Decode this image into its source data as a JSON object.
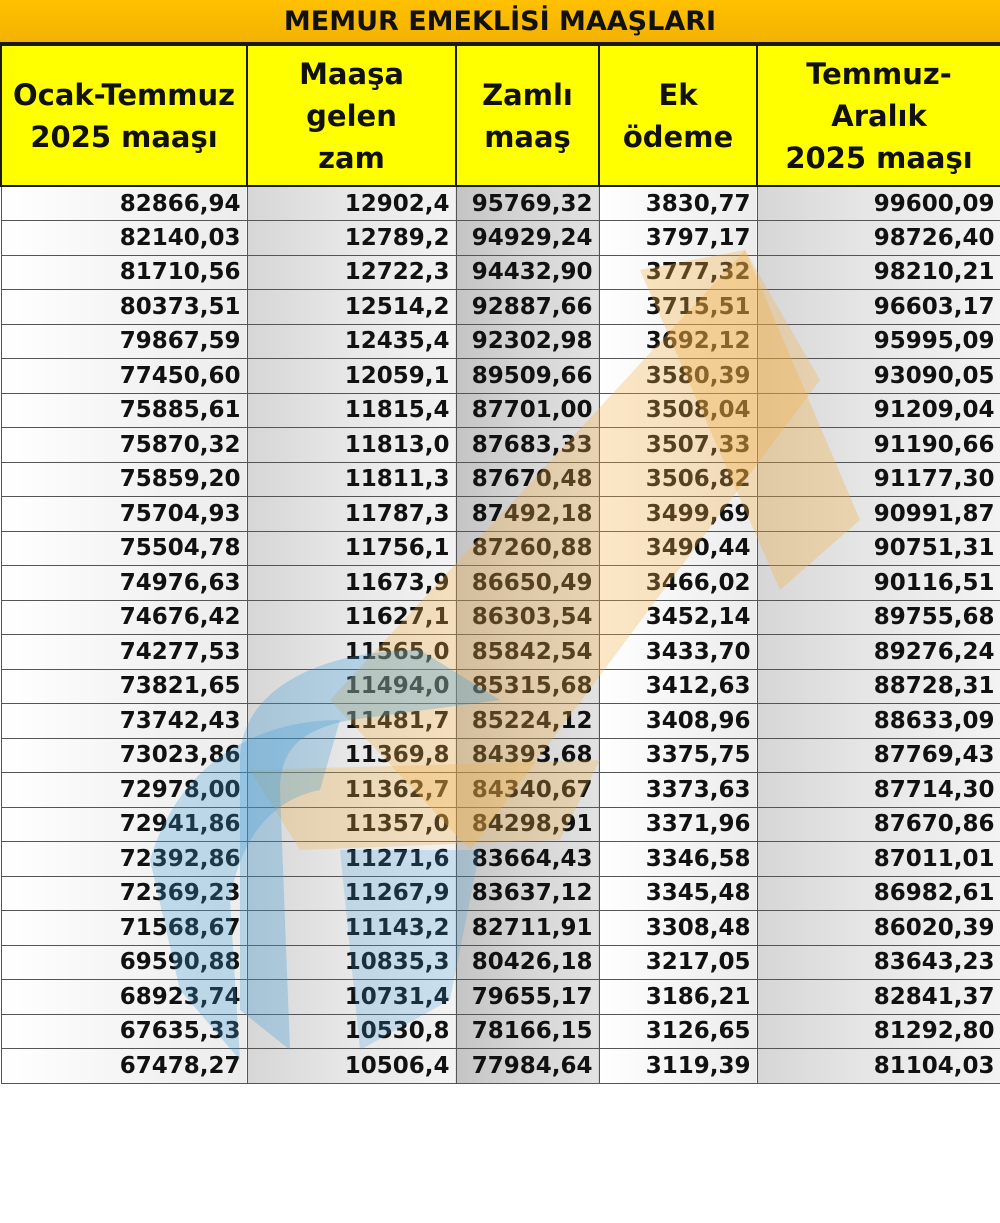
{
  "title": "MEMUR EMEKLİSİ MAAŞLARI",
  "columns": [
    "Ocak-Temmuz\n2025 maaşı",
    "Maaşa gelen\nzam",
    "Zamlı\nmaaş",
    "Ek ödeme",
    "Temmuz-Aralık\n2025 maaşı"
  ],
  "rows": [
    [
      "82866,94",
      "12902,4",
      "95769,32",
      "3830,77",
      "99600,09"
    ],
    [
      "82140,03",
      "12789,2",
      "94929,24",
      "3797,17",
      "98726,40"
    ],
    [
      "81710,56",
      "12722,3",
      "94432,90",
      "3777,32",
      "98210,21"
    ],
    [
      "80373,51",
      "12514,2",
      "92887,66",
      "3715,51",
      "96603,17"
    ],
    [
      "79867,59",
      "12435,4",
      "92302,98",
      "3692,12",
      "95995,09"
    ],
    [
      "77450,60",
      "12059,1",
      "89509,66",
      "3580,39",
      "93090,05"
    ],
    [
      "75885,61",
      "11815,4",
      "87701,00",
      "3508,04",
      "91209,04"
    ],
    [
      "75870,32",
      "11813,0",
      "87683,33",
      "3507,33",
      "91190,66"
    ],
    [
      "75859,20",
      "11811,3",
      "87670,48",
      "3506,82",
      "91177,30"
    ],
    [
      "75704,93",
      "11787,3",
      "87492,18",
      "3499,69",
      "90991,87"
    ],
    [
      "75504,78",
      "11756,1",
      "87260,88",
      "3490,44",
      "90751,31"
    ],
    [
      "74976,63",
      "11673,9",
      "86650,49",
      "3466,02",
      "90116,51"
    ],
    [
      "74676,42",
      "11627,1",
      "86303,54",
      "3452,14",
      "89755,68"
    ],
    [
      "74277,53",
      "11565,0",
      "85842,54",
      "3433,70",
      "89276,24"
    ],
    [
      "73821,65",
      "11494,0",
      "85315,68",
      "3412,63",
      "88728,31"
    ],
    [
      "73742,43",
      "11481,7",
      "85224,12",
      "3408,96",
      "88633,09"
    ],
    [
      "73023,86",
      "11369,8",
      "84393,68",
      "3375,75",
      "87769,43"
    ],
    [
      "72978,00",
      "11362,7",
      "84340,67",
      "3373,63",
      "87714,30"
    ],
    [
      "72941,86",
      "11357,0",
      "84298,91",
      "3371,96",
      "87670,86"
    ],
    [
      "72392,86",
      "11271,6",
      "83664,43",
      "3346,58",
      "87011,01"
    ],
    [
      "72369,23",
      "11267,9",
      "83637,12",
      "3345,48",
      "86982,61"
    ],
    [
      "71568,67",
      "11143,2",
      "82711,91",
      "3308,48",
      "86020,39"
    ],
    [
      "69590,88",
      "10835,3",
      "80426,18",
      "3217,05",
      "83643,23"
    ],
    [
      "68923,74",
      "10731,4",
      "79655,17",
      "3186,21",
      "82841,37"
    ],
    [
      "67635,33",
      "10530,8",
      "78166,15",
      "3126,65",
      "81292,80"
    ],
    [
      "67478,27",
      "10506,4",
      "77984,64",
      "3119,39",
      "81104,03"
    ]
  ],
  "colors": {
    "title_bg": "#ffc000",
    "header_bg": "#ffff00",
    "watermark_orange": "#f5b041",
    "watermark_blue": "#3a9ad9"
  }
}
